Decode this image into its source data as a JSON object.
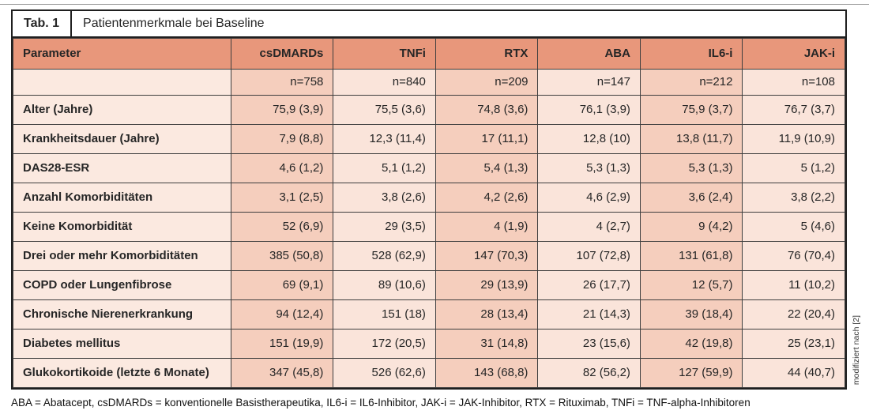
{
  "title_bar": {
    "label": "Tab. 1",
    "title": "Patientenmerkmale bei Baseline"
  },
  "table": {
    "columns": [
      "Parameter",
      "csDMARDs",
      "TNFi",
      "RTX",
      "ABA",
      "IL6-i",
      "JAK-i"
    ],
    "n_row": [
      "",
      "n=758",
      "n=840",
      "n=209",
      "n=147",
      "n=212",
      "n=108"
    ],
    "rows": [
      {
        "label": "Alter (Jahre)",
        "values": [
          "75,9 (3,9)",
          "75,5 (3,6)",
          "74,8 (3,6)",
          "76,1 (3,9)",
          "75,9 (3,7)",
          "76,7 (3,7)"
        ]
      },
      {
        "label": "Krankheitsdauer (Jahre)",
        "values": [
          "7,9 (8,8)",
          "12,3 (11,4)",
          "17 (11,1)",
          "12,8 (10)",
          "13,8 (11,7)",
          "11,9 (10,9)"
        ]
      },
      {
        "label": "DAS28-ESR",
        "values": [
          "4,6 (1,2)",
          "5,1 (1,2)",
          "5,4 (1,3)",
          "5,3 (1,3)",
          "5,3 (1,3)",
          "5 (1,2)"
        ]
      },
      {
        "label": "Anzahl Komorbiditäten",
        "values": [
          "3,1 (2,5)",
          "3,8 (2,6)",
          "4,2 (2,6)",
          "4,6 (2,9)",
          "3,6 (2,4)",
          "3,8 (2,2)"
        ]
      },
      {
        "label": "Keine Komorbidität",
        "values": [
          "52 (6,9)",
          "29 (3,5)",
          "4 (1,9)",
          "4 (2,7)",
          "9 (4,2)",
          "5 (4,6)"
        ]
      },
      {
        "label": "Drei oder mehr Komorbiditäten",
        "values": [
          "385 (50,8)",
          "528 (62,9)",
          "147 (70,3)",
          "107 (72,8)",
          "131 (61,8)",
          "76 (70,4)"
        ]
      },
      {
        "label": "COPD oder Lungenfibrose",
        "values": [
          "69 (9,1)",
          "89 (10,6)",
          "29 (13,9)",
          "26 (17,7)",
          "12 (5,7)",
          "11 (10,2)"
        ]
      },
      {
        "label": "Chronische Nierenerkrankung",
        "values": [
          "94 (12,4)",
          "151 (18)",
          "28 (13,4)",
          "21 (14,3)",
          "39 (18,4)",
          "22 (20,4)"
        ]
      },
      {
        "label": "Diabetes mellitus",
        "values": [
          "151 (19,9)",
          "172 (20,5)",
          "31 (14,8)",
          "23 (15,6)",
          "42 (19,8)",
          "25 (23,1)"
        ]
      },
      {
        "label": "Glukokortikoide (letzte 6 Monate)",
        "values": [
          "347 (45,8)",
          "526 (62,6)",
          "143 (68,8)",
          "82 (56,2)",
          "127 (59,9)",
          "44 (40,7)"
        ]
      }
    ]
  },
  "footnote": "ABA = Abatacept, csDMARDs = konventionelle Basistherapeutika, IL6-i = IL6-Inhibitor, JAK-i = JAK-Inhibitor, RTX = Rituximab, TNFi = TNF-alpha-Inhibitoren",
  "source_note": "modifiziert nach [2]",
  "colors": {
    "header_bg": "#E8977B",
    "col_dark_bg": "#F5CEBD",
    "col_light_bg": "#FAE4DA",
    "param_bg": "#FBE9E0",
    "grid_line": "#3E3E3E",
    "frame": "#1F1F1F"
  }
}
